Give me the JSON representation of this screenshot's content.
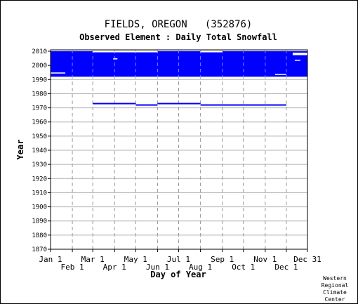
{
  "chart_data": {
    "type": "bar",
    "title": "FIELDS, OREGON   (352876)",
    "subtitle": "Observed Element : Daily Total Snowfall",
    "xlabel": "Day of Year",
    "ylabel": "Year",
    "credit": [
      "Western",
      "Regional",
      "Climate",
      "Center"
    ],
    "x_axis": {
      "range_days": [
        1,
        366
      ],
      "ticks_top_row": [
        {
          "label": "Jan 1",
          "day": 1
        },
        {
          "label": "Mar 1",
          "day": 61
        },
        {
          "label": "May 1",
          "day": 122
        },
        {
          "label": "Jul 1",
          "day": 183
        },
        {
          "label": "Sep 1",
          "day": 245
        },
        {
          "label": "Nov 1",
          "day": 306
        },
        {
          "label": "Dec 31",
          "day": 366
        }
      ],
      "ticks_bottom_row": [
        {
          "label": "Feb 1",
          "day": 32
        },
        {
          "label": "Apr 1",
          "day": 92
        },
        {
          "label": "Jun 1",
          "day": 153
        },
        {
          "label": "Aug 1",
          "day": 214
        },
        {
          "label": "Oct 1",
          "day": 275
        },
        {
          "label": "Dec 1",
          "day": 336
        }
      ]
    },
    "y_axis": {
      "ylim": [
        1870,
        2011
      ],
      "ticks": [
        1870,
        1880,
        1890,
        1900,
        1910,
        1920,
        1930,
        1940,
        1950,
        1960,
        1970,
        1980,
        1990,
        2000,
        2010
      ]
    },
    "grid": true,
    "color": "#0000ff",
    "coverage_series": {
      "name": "",
      "segments": [
        {
          "day_start": 1,
          "day_end": 366,
          "year_start": 1992,
          "year_end": 2010
        },
        {
          "day_start": 61,
          "day_end": 122,
          "year": 1973
        },
        {
          "day_start": 122,
          "day_end": 153,
          "year": 1972
        },
        {
          "day_start": 153,
          "day_end": 214,
          "year": 1973
        },
        {
          "day_start": 214,
          "day_end": 336,
          "year": 1972
        }
      ],
      "gaps": [
        {
          "day_start": 1,
          "day_end": 22,
          "year_start": 1994,
          "year_end": 1995
        },
        {
          "day_start": 61,
          "day_end": 153,
          "year_start": 2009,
          "year_end": 2010
        },
        {
          "day_start": 90,
          "day_end": 96,
          "year_start": 2004,
          "year_end": 2005
        },
        {
          "day_start": 214,
          "day_end": 245,
          "year_start": 2009,
          "year_end": 2010
        },
        {
          "day_start": 320,
          "day_end": 336,
          "year_start": 1993,
          "year_end": 1994
        },
        {
          "day_start": 345,
          "day_end": 366,
          "year_start": 2007,
          "year_end": 2009
        },
        {
          "day_start": 348,
          "day_end": 356,
          "year_start": 2003,
          "year_end": 2004
        }
      ]
    }
  }
}
